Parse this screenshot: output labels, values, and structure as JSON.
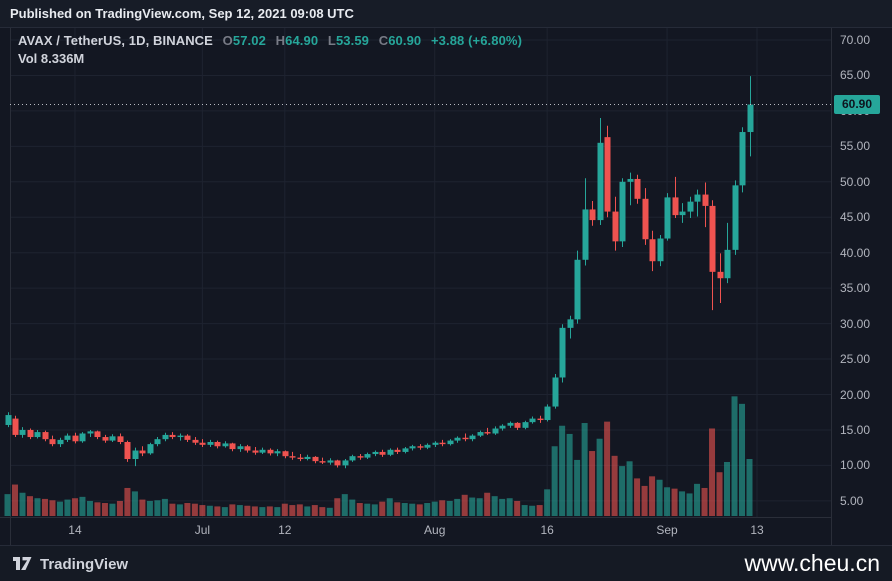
{
  "header": {
    "published": "Published on TradingView.com, Sep 12, 2021 09:08 UTC"
  },
  "legend": {
    "symbol": "AVAX / TetherUS, 1D, BINANCE",
    "ohlc": [
      {
        "label": "O",
        "value": "57.02"
      },
      {
        "label": "H",
        "value": "64.90"
      },
      {
        "label": "L",
        "value": "53.59"
      },
      {
        "label": "C",
        "value": "60.90"
      }
    ],
    "change": "+3.88 (+6.80%)",
    "vol_label": "Vol",
    "vol_value": "8.336M"
  },
  "chart_data": {
    "type": "candlestick",
    "title": "AVAX / TetherUS, 1D, BINANCE",
    "interval": "1D",
    "price_axis": {
      "min": 5,
      "max": 70,
      "ticks": [
        70,
        65,
        60,
        55,
        50,
        45,
        40,
        35,
        30,
        25,
        20,
        15,
        10,
        5
      ]
    },
    "x_ticks": [
      {
        "label": "14",
        "i": 9
      },
      {
        "label": "Jul",
        "i": 26
      },
      {
        "label": "12",
        "i": 37
      },
      {
        "label": "Aug",
        "i": 57
      },
      {
        "label": "16",
        "i": 72
      },
      {
        "label": "Sep",
        "i": 88
      },
      {
        "label": "13",
        "i": 100
      }
    ],
    "price_line": {
      "value": 60.9,
      "label": "60.90"
    },
    "volume_current": 8.336,
    "colors": {
      "up": "#26a69a",
      "down": "#ef5350",
      "vol_up": "rgba(38,166,154,0.6)",
      "vol_down": "rgba(239,83,80,0.6)",
      "grid": "#1e2330",
      "border": "#2a2e39",
      "axis_text": "#b2b5be",
      "bg": "#131722",
      "price_line": "#b9bcc4"
    },
    "candle_fields": [
      "open",
      "high",
      "low",
      "close",
      "volume"
    ],
    "candles": [
      [
        15.7,
        17.5,
        15.4,
        17.1,
        3.2
      ],
      [
        16.6,
        17.0,
        14.0,
        14.3,
        4.6
      ],
      [
        14.3,
        15.4,
        13.9,
        15.0,
        3.4
      ],
      [
        15.0,
        15.2,
        13.7,
        14.0,
        2.9
      ],
      [
        14.0,
        15.0,
        13.8,
        14.7,
        2.6
      ],
      [
        14.7,
        14.9,
        13.4,
        13.7,
        2.5
      ],
      [
        13.7,
        14.2,
        12.7,
        13.0,
        2.3
      ],
      [
        13.0,
        13.9,
        12.6,
        13.6,
        2.1
      ],
      [
        13.6,
        14.5,
        13.3,
        14.2,
        2.4
      ],
      [
        14.2,
        14.6,
        13.1,
        13.4,
        2.6
      ],
      [
        13.4,
        14.7,
        13.2,
        14.5,
        2.8
      ],
      [
        14.5,
        15.0,
        14.0,
        14.8,
        2.2
      ],
      [
        14.8,
        14.9,
        13.7,
        14.0,
        2.0
      ],
      [
        14.0,
        14.3,
        13.2,
        13.5,
        1.9
      ],
      [
        13.5,
        14.4,
        13.3,
        14.1,
        1.8
      ],
      [
        14.1,
        14.5,
        13.0,
        13.3,
        2.2
      ],
      [
        13.3,
        13.5,
        10.5,
        10.9,
        4.1
      ],
      [
        10.9,
        12.5,
        9.9,
        12.1,
        3.6
      ],
      [
        12.1,
        12.7,
        11.3,
        11.7,
        2.4
      ],
      [
        11.7,
        13.2,
        11.5,
        13.0,
        2.2
      ],
      [
        13.0,
        14.0,
        12.7,
        13.7,
        2.3
      ],
      [
        13.7,
        14.6,
        13.4,
        14.3,
        2.5
      ],
      [
        14.3,
        14.7,
        13.7,
        14.0,
        1.8
      ],
      [
        14.0,
        14.5,
        13.5,
        14.2,
        1.7
      ],
      [
        14.2,
        14.4,
        13.3,
        13.6,
        1.9
      ],
      [
        13.6,
        14.0,
        12.9,
        13.2,
        1.8
      ],
      [
        13.2,
        13.7,
        12.6,
        12.9,
        1.6
      ],
      [
        12.9,
        13.6,
        12.6,
        13.3,
        1.5
      ],
      [
        13.3,
        13.5,
        12.4,
        12.7,
        1.4
      ],
      [
        12.7,
        13.4,
        12.5,
        13.1,
        1.3
      ],
      [
        13.1,
        13.2,
        12.0,
        12.3,
        1.7
      ],
      [
        12.3,
        13.0,
        11.9,
        12.7,
        1.6
      ],
      [
        12.7,
        12.9,
        11.8,
        12.1,
        1.5
      ],
      [
        12.1,
        12.6,
        11.5,
        11.8,
        1.4
      ],
      [
        11.8,
        12.5,
        11.6,
        12.2,
        1.3
      ],
      [
        12.2,
        12.4,
        11.4,
        11.7,
        1.4
      ],
      [
        11.7,
        12.3,
        11.3,
        12.0,
        1.3
      ],
      [
        12.0,
        12.1,
        11.0,
        11.3,
        1.8
      ],
      [
        11.3,
        11.9,
        10.8,
        11.1,
        1.6
      ],
      [
        11.1,
        11.6,
        10.6,
        10.9,
        1.7
      ],
      [
        10.9,
        11.5,
        10.7,
        11.2,
        1.4
      ],
      [
        11.2,
        11.3,
        10.3,
        10.6,
        1.6
      ],
      [
        10.6,
        11.1,
        10.2,
        10.4,
        1.3
      ],
      [
        10.4,
        11.0,
        10.1,
        10.7,
        1.2
      ],
      [
        10.7,
        10.8,
        9.7,
        10.0,
        2.6
      ],
      [
        10.0,
        10.9,
        9.6,
        10.7,
        3.2
      ],
      [
        10.7,
        11.5,
        10.5,
        11.3,
        2.4
      ],
      [
        11.3,
        11.6,
        10.8,
        11.1,
        1.9
      ],
      [
        11.1,
        11.8,
        10.9,
        11.6,
        1.8
      ],
      [
        11.6,
        12.1,
        11.3,
        11.9,
        1.7
      ],
      [
        11.9,
        12.2,
        11.2,
        11.5,
        2.1
      ],
      [
        11.5,
        12.4,
        11.3,
        12.2,
        2.6
      ],
      [
        12.2,
        12.5,
        11.6,
        11.9,
        2.0
      ],
      [
        11.9,
        12.6,
        11.7,
        12.4,
        1.9
      ],
      [
        12.4,
        12.9,
        12.1,
        12.7,
        1.8
      ],
      [
        12.7,
        13.0,
        12.2,
        12.5,
        1.7
      ],
      [
        12.5,
        13.1,
        12.3,
        12.9,
        1.9
      ],
      [
        12.9,
        13.4,
        12.6,
        13.2,
        2.1
      ],
      [
        13.2,
        13.6,
        12.7,
        13.0,
        2.3
      ],
      [
        13.0,
        13.7,
        12.8,
        13.5,
        2.2
      ],
      [
        13.5,
        14.1,
        13.2,
        13.9,
        2.5
      ],
      [
        13.9,
        14.5,
        13.4,
        13.7,
        3.1
      ],
      [
        13.7,
        14.4,
        13.4,
        14.2,
        2.7
      ],
      [
        14.2,
        14.9,
        14.0,
        14.7,
        2.6
      ],
      [
        14.7,
        15.3,
        14.3,
        14.5,
        3.4
      ],
      [
        14.5,
        15.5,
        14.3,
        15.2,
        2.9
      ],
      [
        15.2,
        15.8,
        14.9,
        15.6,
        2.5
      ],
      [
        15.6,
        16.2,
        15.3,
        16.0,
        2.6
      ],
      [
        16.0,
        16.1,
        15.0,
        15.3,
        2.2
      ],
      [
        15.3,
        16.3,
        15.1,
        16.1,
        1.6
      ],
      [
        16.1,
        16.9,
        15.9,
        16.6,
        1.5
      ],
      [
        16.6,
        17.0,
        16.0,
        16.4,
        1.6
      ],
      [
        16.4,
        18.6,
        16.2,
        18.3,
        3.9
      ],
      [
        18.3,
        22.9,
        18.0,
        22.4,
        10.2
      ],
      [
        22.4,
        29.9,
        21.7,
        29.4,
        13.2
      ],
      [
        29.4,
        31.1,
        27.9,
        30.6,
        12.0
      ],
      [
        30.6,
        40.3,
        30.0,
        39.0,
        8.2
      ],
      [
        39.0,
        50.5,
        38.2,
        46.1,
        13.6
      ],
      [
        46.1,
        47.3,
        43.8,
        44.6,
        9.5
      ],
      [
        44.6,
        59.0,
        43.9,
        55.5,
        11.3
      ],
      [
        56.3,
        57.9,
        45.0,
        45.8,
        13.8
      ],
      [
        45.8,
        47.9,
        40.3,
        41.6,
        8.8
      ],
      [
        41.6,
        50.5,
        40.8,
        50.0,
        7.3
      ],
      [
        50.0,
        51.3,
        46.7,
        50.4,
        8.0
      ],
      [
        50.4,
        51.0,
        46.9,
        47.6,
        5.5
      ],
      [
        47.6,
        49.1,
        41.1,
        41.9,
        4.4
      ],
      [
        41.9,
        43.1,
        37.4,
        38.8,
        5.8
      ],
      [
        38.8,
        42.5,
        38.1,
        42.0,
        5.3
      ],
      [
        42.0,
        48.4,
        41.7,
        47.8,
        4.2
      ],
      [
        47.8,
        50.7,
        44.9,
        45.3,
        4.0
      ],
      [
        45.3,
        47.0,
        44.2,
        45.8,
        3.6
      ],
      [
        45.8,
        47.9,
        44.9,
        47.2,
        3.3
      ],
      [
        47.2,
        48.9,
        45.1,
        48.2,
        4.7
      ],
      [
        48.2,
        49.9,
        43.6,
        46.6,
        4.1
      ],
      [
        46.6,
        47.4,
        31.9,
        37.3,
        12.8
      ],
      [
        37.3,
        39.9,
        32.9,
        36.4,
        6.4
      ],
      [
        36.4,
        44.2,
        35.7,
        40.4,
        7.9
      ],
      [
        40.4,
        50.2,
        39.7,
        49.5,
        17.5
      ],
      [
        49.5,
        57.7,
        48.5,
        57.02,
        16.4
      ],
      [
        57.02,
        64.9,
        53.59,
        60.9,
        8.336
      ]
    ]
  },
  "footer": {
    "brand": "TradingView",
    "watermark": "www.cheu.cn"
  }
}
